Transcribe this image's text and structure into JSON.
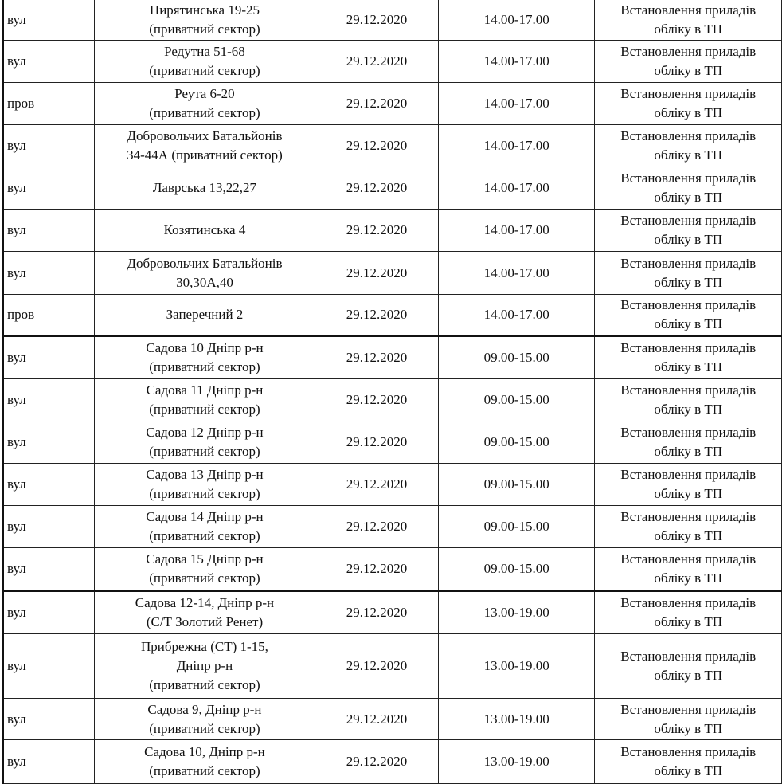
{
  "rows": [
    {
      "type": "вул",
      "address": [
        "Пирятинська 19-25",
        "(приватний сектор)"
      ],
      "date": "29.12.2020",
      "time": "14.00-17.00",
      "work": [
        "Встановлення приладів",
        "обліку в ТП"
      ]
    },
    {
      "type": "вул",
      "address": [
        "Редутна 51-68",
        "(приватний сектор)"
      ],
      "date": "29.12.2020",
      "time": "14.00-17.00",
      "work": [
        "Встановлення приладів",
        "обліку в ТП"
      ]
    },
    {
      "type": "пров",
      "address": [
        "Реута 6-20",
        "(приватний сектор)"
      ],
      "date": "29.12.2020",
      "time": "14.00-17.00",
      "work": [
        "Встановлення приладів",
        "обліку в ТП"
      ]
    },
    {
      "type": "вул",
      "address": [
        "Добровольчих Батальйонів",
        "34-44А  (приватний сектор)"
      ],
      "date": "29.12.2020",
      "time": "14.00-17.00",
      "work": [
        "Встановлення приладів",
        "обліку в ТП"
      ]
    },
    {
      "type": "вул",
      "address": [
        "Лаврська 13,22,27"
      ],
      "date": "29.12.2020",
      "time": "14.00-17.00",
      "work": [
        "Встановлення приладів",
        "обліку в ТП"
      ]
    },
    {
      "type": "вул",
      "address": [
        "Козятинська 4"
      ],
      "date": "29.12.2020",
      "time": "14.00-17.00",
      "work": [
        "Встановлення приладів",
        "обліку в ТП"
      ]
    },
    {
      "type": "вул",
      "address": [
        "Добровольчих Батальйонів",
        "30,30А,40"
      ],
      "date": "29.12.2020",
      "time": "14.00-17.00",
      "work": [
        "Встановлення приладів",
        "обліку в ТП"
      ]
    },
    {
      "type": "пров",
      "address": [
        "Заперечний 2"
      ],
      "date": "29.12.2020",
      "time": "14.00-17.00",
      "work": [
        "Встановлення приладів",
        "обліку в ТП"
      ]
    },
    {
      "type": "вул",
      "address": [
        "Садова 10 Дніпр р-н",
        "(приватний сектор)"
      ],
      "date": "29.12.2020",
      "time": "09.00-15.00",
      "work": [
        "Встановлення приладів",
        "обліку в ТП"
      ]
    },
    {
      "type": "вул",
      "address": [
        "Садова 11 Дніпр р-н",
        "(приватний сектор)"
      ],
      "date": "29.12.2020",
      "time": "09.00-15.00",
      "work": [
        "Встановлення приладів",
        "обліку в ТП"
      ]
    },
    {
      "type": "вул",
      "address": [
        "Садова 12 Дніпр р-н",
        "(приватний сектор)"
      ],
      "date": "29.12.2020",
      "time": "09.00-15.00",
      "work": [
        "Встановлення приладів",
        "обліку в ТП"
      ]
    },
    {
      "type": "вул",
      "address": [
        "Садова 13 Дніпр р-н",
        "(приватний сектор)"
      ],
      "date": "29.12.2020",
      "time": "09.00-15.00",
      "work": [
        "Встановлення приладів",
        "обліку в ТП"
      ]
    },
    {
      "type": "вул",
      "address": [
        "Садова 14 Дніпр р-н",
        "(приватний сектор)"
      ],
      "date": "29.12.2020",
      "time": "09.00-15.00",
      "work": [
        "Встановлення приладів",
        "обліку в ТП"
      ]
    },
    {
      "type": "вул",
      "address": [
        "Садова 15 Дніпр р-н",
        "(приватний сектор)"
      ],
      "date": "29.12.2020",
      "time": "09.00-15.00",
      "work": [
        "Встановлення приладів",
        "обліку в ТП"
      ]
    },
    {
      "type": "вул",
      "address": [
        "Садова 12-14, Дніпр р-н",
        "(С/Т Золотий Ренет)"
      ],
      "date": "29.12.2020",
      "time": "13.00-19.00",
      "work": [
        "Встановлення приладів",
        "обліку в ТП"
      ]
    },
    {
      "type": "вул",
      "address": [
        "Прибрежна (СТ) 1-15,",
        "Дніпр р-н",
        "(приватний сектор)"
      ],
      "date": "29.12.2020",
      "time": "13.00-19.00",
      "work": [
        "Встановлення приладів",
        "обліку в ТП"
      ]
    },
    {
      "type": "вул",
      "address": [
        "Садова 9, Дніпр р-н",
        "(приватний сектор)"
      ],
      "date": "29.12.2020",
      "time": "13.00-19.00",
      "work": [
        "Встановлення приладів",
        "обліку в ТП"
      ]
    },
    {
      "type": "вул",
      "address": [
        "Садова 10, Дніпр р-н",
        "(приватний сектор)"
      ],
      "date": "29.12.2020",
      "time": "13.00-19.00",
      "work": [
        "Встановлення приладів",
        "обліку в ТП"
      ]
    }
  ]
}
